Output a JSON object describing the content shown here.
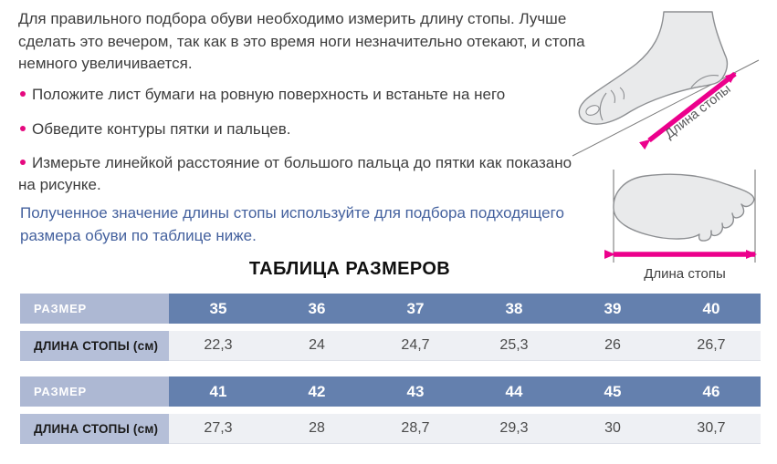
{
  "content": {
    "intro": "Для правильного подбора обуви необходимо измерить длину стопы. Лучше сделать это вечером, так как в это время ноги незначительно отекают, и стопа немного увеличивается.",
    "bullets": [
      "Положите лист бумаги на ровную поверхность и встаньте на него",
      "Обведите контуры пятки и пальцев.",
      "Измерьте линейкой расстояние от большого пальца до пятки как показано на рисунке."
    ],
    "note": "Полученное значение длины стопы используйте для подбора подходящего размера обуви по таблице ниже.",
    "table_title": "ТАБЛИЦА РАЗМЕРОВ"
  },
  "illustrations": {
    "side_foot_arrow_label": "Длина стопы",
    "sole_foot_arrow_label": "Длина стопы"
  },
  "tables": [
    {
      "size_header": "РАЗМЕР",
      "length_header": "ДЛИНА СТОПЫ (см)",
      "sizes": [
        "35",
        "36",
        "37",
        "38",
        "39",
        "40"
      ],
      "lengths": [
        "22,3",
        "24",
        "24,7",
        "25,3",
        "26",
        "26,7"
      ]
    },
    {
      "size_header": "РАЗМЕР",
      "length_header": "ДЛИНА СТОПЫ (см)",
      "sizes": [
        "41",
        "42",
        "43",
        "44",
        "45",
        "46"
      ],
      "lengths": [
        "27,3",
        "28",
        "28,7",
        "29,3",
        "30",
        "30,7"
      ]
    }
  ],
  "colors": {
    "accent_magenta": "#ec008c",
    "bullet_dot": "#e5097f",
    "note_blue": "#44619e",
    "header_label_bg": "#adb8d3",
    "size_cells_bg": "#6480ae",
    "length_label_bg": "#b5bfd8",
    "value_cells_bg": "#eef0f4",
    "body_text": "#3d3d3d"
  }
}
